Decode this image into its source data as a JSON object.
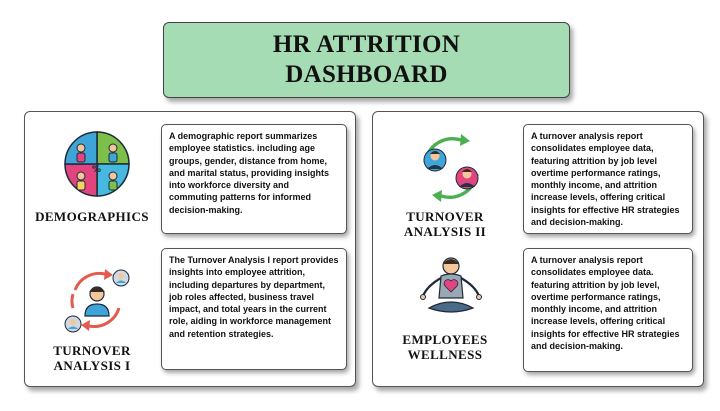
{
  "header": {
    "title_line1": "HR ATTRITION",
    "title_line2": "DASHBOARD"
  },
  "sections": {
    "demographics": {
      "label": "DEMOGRAPHICS",
      "icon": "demographics-pie-people-icon",
      "description": "A demographic report summarizes employee statistics. including age groups, gender, distance from home, and marital status, providing insights into workforce diversity and commuting patterns for informed decision-making."
    },
    "turnover_1": {
      "label_line1": "TURNOVER",
      "label_line2": "ANALYSIS I",
      "icon": "employee-turnover-cycle-icon",
      "description": "The Turnover Analysis I report provides insights into employee attrition, including departures by department, job roles affected, business travel impact, and total years in the current role, aiding in workforce management and retention strategies."
    },
    "turnover_2": {
      "label_line1": "TURNOVER",
      "label_line2": "ANALYSIS II",
      "icon": "employee-exchange-icon",
      "description": "A turnover analysis report consolidates employee data, featuring attrition by job level overtime performance ratings, monthly income, and attrition increase levels, offering critical insights for effective HR strategies and decision-making."
    },
    "wellness": {
      "label_line1": "EMPLOYEES",
      "label_line2": "WELLNESS",
      "icon": "meditation-heart-icon",
      "description": "A turnover analysis report consolidates employee data. featuring attrition by job level, overtime performance ratings, monthly income, and attrition increase levels, offering critical insights for effective HR strategies and decision-making."
    }
  }
}
